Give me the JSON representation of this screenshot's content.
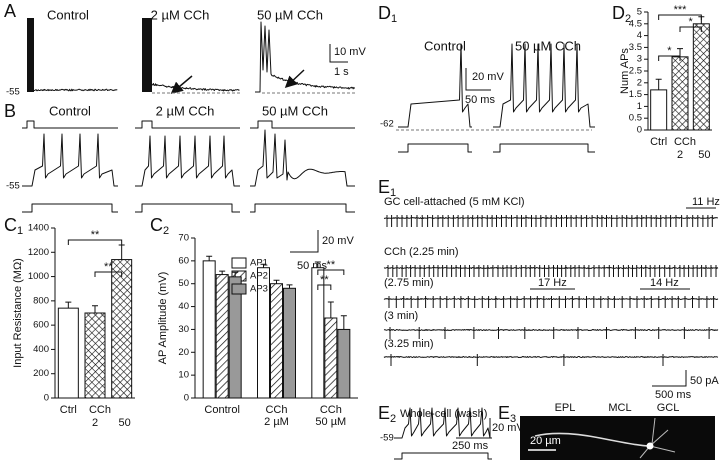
{
  "panels": {
    "A": {
      "label": "A",
      "titles": [
        "Control",
        "2 µM CCh",
        "50 µM CCh"
      ],
      "rmp": "-55",
      "scale_v": "10 mV",
      "scale_t": "1 s"
    },
    "B": {
      "label": "B",
      "titles": [
        "Control",
        "2 µM CCh",
        "50 µM CCh"
      ],
      "rmp": "-55",
      "scale_v": "20 mV",
      "scale_t": "50 ms"
    },
    "C1": {
      "label": "C",
      "sub": "1"
    },
    "C2": {
      "label": "C",
      "sub": "2"
    },
    "D1": {
      "label": "D",
      "sub": "1",
      "titles": [
        "Control",
        "50 µM CCh"
      ],
      "rmp": "-62",
      "scale_v": "20 mV",
      "scale_t": "50 ms"
    },
    "D2": {
      "label": "D",
      "sub": "2"
    },
    "E1": {
      "label": "E",
      "sub": "1",
      "rows": [
        "GC cell-attached (5 mM KCl)",
        "CCh (2.25 min)",
        "(2.75 min)",
        "(3 min)",
        "(3.25 min)"
      ],
      "rates": [
        "11 Hz",
        "17 Hz",
        "14 Hz"
      ],
      "scale_i": "50 pA",
      "scale_t": "500 ms"
    },
    "E2": {
      "label": "E",
      "sub": "2",
      "title": "Whole-cell (wash)",
      "rmp": "-59",
      "scale_v": "20 mV",
      "scale_t": "250 ms"
    },
    "E3": {
      "label": "E",
      "sub": "3",
      "layers": [
        "EPL",
        "MCL",
        "GCL"
      ],
      "scale": "20 µm"
    }
  },
  "chart_data": [
    {
      "type": "bar",
      "y_label": "Input Resistance (MΩ)",
      "categories": [
        "Ctrl",
        "2",
        "50"
      ],
      "group_label": "CCh",
      "values": [
        740,
        700,
        1140
      ],
      "errors": [
        50,
        60,
        120
      ],
      "fills": [
        "white",
        "crosshatch",
        "crosshatch"
      ],
      "ylim": [
        0,
        1400
      ],
      "yticks": [
        0,
        200,
        400,
        600,
        800,
        1000,
        1200,
        1400
      ],
      "significance": [
        "**",
        "**"
      ]
    },
    {
      "type": "grouped_bar",
      "y_label": "AP Amplitude (mV)",
      "categories": [
        [
          "Control"
        ],
        [
          "CCh",
          "2 µM"
        ],
        [
          "CCh",
          "50 µM"
        ]
      ],
      "series": [
        {
          "name": "AP1",
          "fill": "white",
          "values": [
            60,
            57,
            57
          ],
          "errors": [
            2,
            1.5,
            2.5
          ]
        },
        {
          "name": "AP2",
          "fill": "hatch",
          "values": [
            54,
            50,
            35
          ],
          "errors": [
            1.5,
            1.5,
            7
          ]
        },
        {
          "name": "AP3",
          "fill": "#999999",
          "values": [
            53,
            48,
            30
          ],
          "errors": [
            2,
            1.5,
            6
          ]
        }
      ],
      "ylim": [
        0,
        70
      ],
      "yticks": [
        0,
        10,
        20,
        30,
        40,
        50,
        60,
        70
      ],
      "significance": [
        "**",
        "**"
      ]
    },
    {
      "type": "bar",
      "y_label": "Num APs",
      "categories": [
        "Ctrl",
        "2",
        "50"
      ],
      "group_label": "CCh",
      "values": [
        1.7,
        3.1,
        4.5
      ],
      "errors": [
        0.45,
        0.35,
        0.3
      ],
      "fills": [
        "white",
        "crosshatch",
        "crosshatch"
      ],
      "ylim": [
        0,
        5
      ],
      "yticks": [
        0,
        0.5,
        1,
        1.5,
        2,
        2.5,
        3,
        3.5,
        4,
        4.5,
        5
      ],
      "significance": [
        "***",
        "*",
        "*"
      ]
    }
  ]
}
